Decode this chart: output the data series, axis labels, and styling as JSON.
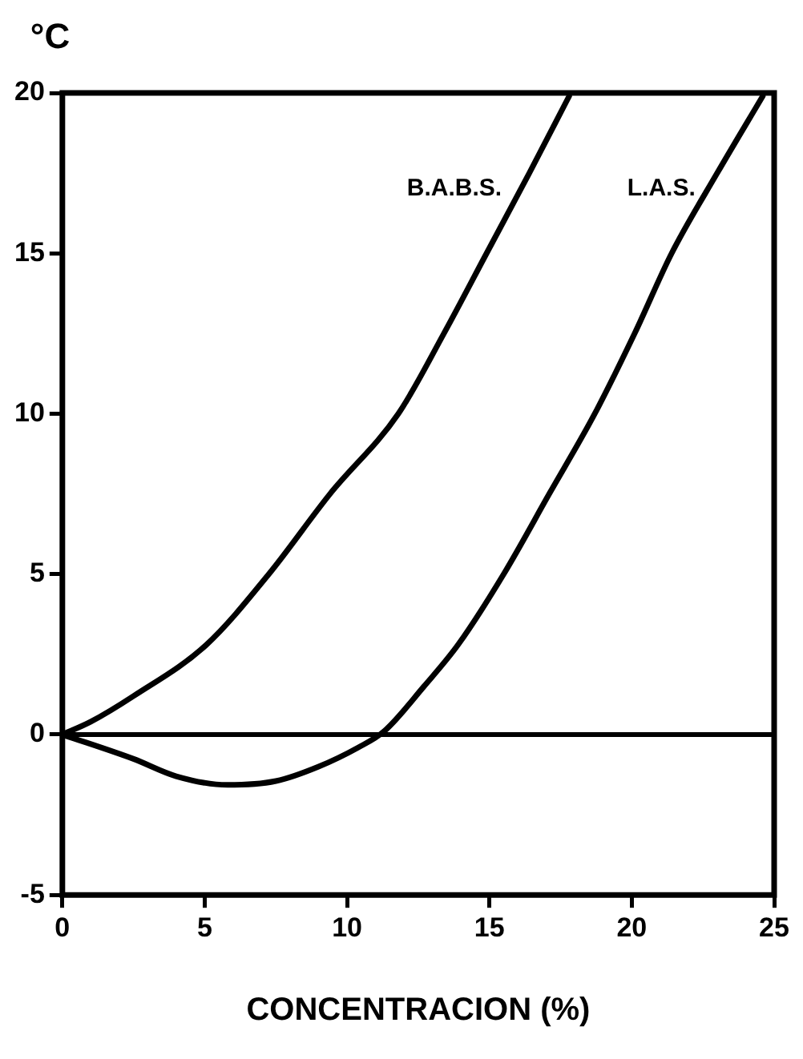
{
  "chart_data": {
    "type": "line",
    "xlabel": "CONCENTRACION (%)",
    "ylabel": "°C",
    "xlim": [
      0,
      25
    ],
    "xticks": [
      0,
      5,
      10,
      15,
      20,
      25
    ],
    "ylim": [
      -5,
      20
    ],
    "yticks": [
      -5,
      0,
      5,
      10,
      15,
      20
    ],
    "grid": false,
    "legend": false,
    "marker": "none",
    "line_style": "solid",
    "ref_lines": [
      {
        "axis": "y",
        "value": 0,
        "color": "#000000"
      }
    ],
    "series": [
      {
        "name": "B.A.B.S.",
        "color": "#000000",
        "x": [
          0,
          1,
          2.5,
          5.06,
          7.25,
          9.4,
          11.8,
          13.4,
          14.9,
          16.4,
          17.8
        ],
        "values": [
          0,
          0.4,
          1.2,
          2.8,
          5,
          7.5,
          10,
          12.5,
          15,
          17.5,
          19.9
        ]
      },
      {
        "name": "L.A.S.",
        "color": "#000000",
        "x": [
          0,
          2.5,
          4,
          5.8,
          7.5,
          9,
          10.4,
          11.3,
          12.7,
          13.9,
          15.5,
          17.1,
          18.7,
          20.1,
          21.4,
          23,
          24.6
        ],
        "values": [
          0,
          -0.76,
          -1.3,
          -1.57,
          -1.45,
          -1,
          -0.4,
          0.1,
          1.5,
          2.8,
          5,
          7.5,
          10,
          12.5,
          15,
          17.5,
          19.9
        ]
      }
    ]
  }
}
